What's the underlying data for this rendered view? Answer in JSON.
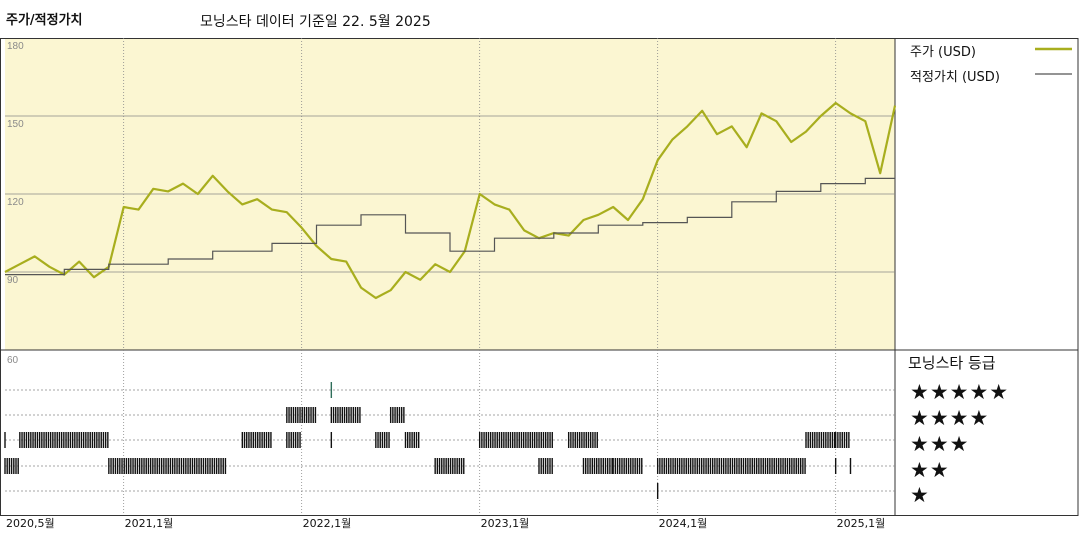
{
  "title": "주가/적정가치",
  "subtitle": "모닝스타 데이터 기준일 22. 5월 2025",
  "legend": {
    "price": "주가 (USD)",
    "fair_value": "적정가치 (USD)"
  },
  "rating_header": "모닝스타 등급",
  "stars": [
    "★★★★★",
    "★★★★",
    "★★★",
    "★★",
    "★"
  ],
  "colors": {
    "price": "#a8ae1e",
    "fair_value": "#555555",
    "plot_bg": "#fbf6d2",
    "grid": "#888888",
    "rating_marks": "#111111",
    "rating_5": "#2f6e5a"
  },
  "chart_data": {
    "type": "line",
    "ylim": [
      60,
      180
    ],
    "y_ticks": [
      "180",
      "150",
      "120",
      "90"
    ],
    "lower_label": "60",
    "x_ticks": [
      "2020,5월",
      "2021,1월",
      "2022,1월",
      "2023,1월",
      "2024,1월",
      "2025,1월"
    ],
    "x_tick_dates": [
      "2020-05",
      "2021-01",
      "2022-01",
      "2023-01",
      "2024-01",
      "2025-01"
    ],
    "x_range": [
      "2020-05",
      "2025-05"
    ],
    "series": [
      {
        "name": "주가 (USD)",
        "x": [
          "2020-05",
          "2020-06",
          "2020-07",
          "2020-08",
          "2020-09",
          "2020-10",
          "2020-11",
          "2020-12",
          "2021-01",
          "2021-02",
          "2021-03",
          "2021-04",
          "2021-05",
          "2021-06",
          "2021-07",
          "2021-08",
          "2021-09",
          "2021-10",
          "2021-11",
          "2021-12",
          "2022-01",
          "2022-02",
          "2022-03",
          "2022-04",
          "2022-05",
          "2022-06",
          "2022-07",
          "2022-08",
          "2022-09",
          "2022-10",
          "2022-11",
          "2022-12",
          "2023-01",
          "2023-02",
          "2023-03",
          "2023-04",
          "2023-05",
          "2023-06",
          "2023-07",
          "2023-08",
          "2023-09",
          "2023-10",
          "2023-11",
          "2023-12",
          "2024-01",
          "2024-02",
          "2024-03",
          "2024-04",
          "2024-05",
          "2024-06",
          "2024-07",
          "2024-08",
          "2024-09",
          "2024-10",
          "2024-11",
          "2024-12",
          "2025-01",
          "2025-02",
          "2025-03",
          "2025-04",
          "2025-05"
        ],
        "values": [
          90,
          93,
          96,
          92,
          89,
          94,
          88,
          92,
          115,
          114,
          122,
          121,
          124,
          120,
          127,
          121,
          116,
          118,
          114,
          113,
          107,
          100,
          95,
          94,
          84,
          80,
          83,
          90,
          87,
          93,
          90,
          98,
          120,
          116,
          114,
          106,
          103,
          105,
          104,
          110,
          112,
          115,
          110,
          118,
          133,
          141,
          146,
          152,
          143,
          146,
          138,
          151,
          148,
          140,
          144,
          150,
          155,
          151,
          148,
          128,
          154
        ]
      },
      {
        "name": "적정가치 (USD)",
        "x": [
          "2020-05",
          "2020-09",
          "2020-12",
          "2021-04",
          "2021-07",
          "2021-11",
          "2022-02",
          "2022-05",
          "2022-08",
          "2022-11",
          "2023-02",
          "2023-06",
          "2023-09",
          "2023-12",
          "2024-03",
          "2024-06",
          "2024-09",
          "2024-12",
          "2025-03",
          "2025-05"
        ],
        "values": [
          89,
          91,
          93,
          95,
          98,
          101,
          108,
          112,
          105,
          98,
          103,
          105,
          108,
          109,
          111,
          117,
          121,
          124,
          126,
          126
        ]
      }
    ],
    "rating_history": [
      {
        "stars": 5,
        "from": "2022-03",
        "to": "2022-03"
      },
      {
        "stars": 4,
        "from": "2021-12",
        "to": "2022-02"
      },
      {
        "stars": 4,
        "from": "2022-03",
        "to": "2022-05"
      },
      {
        "stars": 4,
        "from": "2022-07",
        "to": "2022-08"
      },
      {
        "stars": 3,
        "from": "2020-05",
        "to": "2020-05"
      },
      {
        "stars": 3,
        "from": "2020-06",
        "to": "2020-12"
      },
      {
        "stars": 3,
        "from": "2021-09",
        "to": "2021-11"
      },
      {
        "stars": 3,
        "from": "2021-12",
        "to": "2022-01"
      },
      {
        "stars": 3,
        "from": "2022-03",
        "to": "2022-03"
      },
      {
        "stars": 3,
        "from": "2022-06",
        "to": "2022-07"
      },
      {
        "stars": 3,
        "from": "2022-08",
        "to": "2022-09"
      },
      {
        "stars": 3,
        "from": "2023-01",
        "to": "2023-06"
      },
      {
        "stars": 3,
        "from": "2023-07",
        "to": "2023-09"
      },
      {
        "stars": 3,
        "from": "2024-11",
        "to": "2025-01"
      },
      {
        "stars": 3,
        "from": "2025-01",
        "to": "2025-02"
      },
      {
        "stars": 2,
        "from": "2020-05",
        "to": "2020-06"
      },
      {
        "stars": 2,
        "from": "2020-12",
        "to": "2021-08"
      },
      {
        "stars": 2,
        "from": "2022-10",
        "to": "2022-12"
      },
      {
        "stars": 2,
        "from": "2023-05",
        "to": "2023-06"
      },
      {
        "stars": 2,
        "from": "2023-08",
        "to": "2023-10"
      },
      {
        "stars": 2,
        "from": "2023-10",
        "to": "2023-12"
      },
      {
        "stars": 2,
        "from": "2024-01",
        "to": "2024-11"
      },
      {
        "stars": 2,
        "from": "2025-01",
        "to": "2025-01"
      },
      {
        "stars": 2,
        "from": "2025-02",
        "to": "2025-02"
      },
      {
        "stars": 1,
        "from": "2024-01",
        "to": "2024-01"
      }
    ]
  }
}
